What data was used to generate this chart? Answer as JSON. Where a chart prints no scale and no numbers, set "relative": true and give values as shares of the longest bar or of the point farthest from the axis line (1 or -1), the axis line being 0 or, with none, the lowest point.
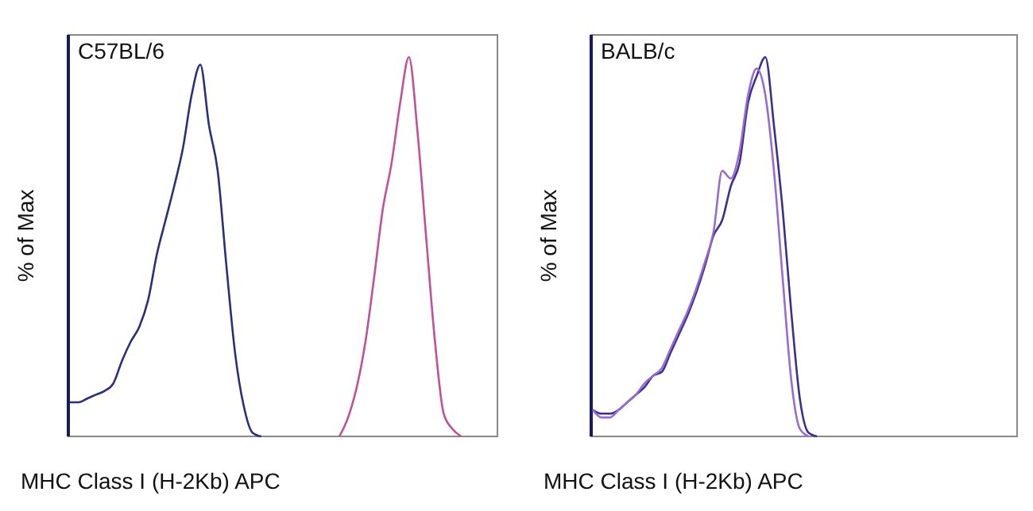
{
  "chart_data": [
    {
      "type": "line",
      "title": "C57BL/6",
      "xlabel": "MHC Class I (H-2Kb) APC",
      "ylabel": "% of Max",
      "relative": true,
      "categories": [
        null,
        null,
        null,
        null,
        null,
        null,
        null,
        null,
        null,
        null,
        null,
        null,
        null,
        null,
        null,
        null,
        null,
        null,
        null,
        null,
        null,
        null,
        null,
        null,
        null,
        null,
        null,
        null,
        null,
        null,
        null,
        null,
        null,
        null,
        null,
        null,
        null,
        null,
        null,
        null,
        null,
        null,
        null,
        null,
        null,
        null,
        null,
        null,
        null,
        null
      ],
      "series": [
        {
          "color": "#2b2f7a",
          "values": [
            0.09,
            0.09,
            0.1,
            0.11,
            0.12,
            0.14,
            0.2,
            0.25,
            0.29,
            0.36,
            0.48,
            0.57,
            0.66,
            0.76,
            0.9,
            0.98,
            0.82,
            0.7,
            0.45,
            0.22,
            0.08,
            0.01,
            0,
            null,
            null,
            null,
            null,
            null,
            null,
            null,
            null,
            null,
            null,
            null,
            null,
            null,
            null,
            null,
            null,
            null,
            null,
            null,
            null,
            null,
            null,
            null,
            null,
            null,
            null,
            null
          ]
        },
        {
          "color": "#c0509a",
          "values": [
            null,
            null,
            null,
            null,
            null,
            null,
            null,
            null,
            null,
            null,
            null,
            null,
            null,
            null,
            null,
            null,
            null,
            null,
            null,
            null,
            null,
            null,
            null,
            null,
            null,
            null,
            null,
            null,
            null,
            null,
            null,
            0,
            0.05,
            0.13,
            0.25,
            0.42,
            0.6,
            0.72,
            0.88,
            1,
            0.8,
            0.52,
            0.25,
            0.06,
            0.02,
            0,
            null,
            null,
            null,
            null
          ]
        }
      ]
    },
    {
      "type": "line",
      "title": "BALB/c",
      "xlabel": "MHC Class I (H-2Kb) APC",
      "ylabel": "% of Max",
      "relative": true,
      "categories": [
        null,
        null,
        null,
        null,
        null,
        null,
        null,
        null,
        null,
        null,
        null,
        null,
        null,
        null,
        null,
        null,
        null,
        null,
        null,
        null,
        null,
        null,
        null,
        null,
        null,
        null,
        null,
        null,
        null,
        null,
        null,
        null,
        null,
        null,
        null,
        null,
        null,
        null,
        null,
        null,
        null,
        null,
        null,
        null,
        null,
        null,
        null,
        null,
        null,
        null
      ],
      "series": [
        {
          "color": "#3a2f8f",
          "values": [
            0.07,
            0.06,
            0.06,
            0.07,
            0.09,
            0.11,
            0.13,
            0.16,
            0.17,
            0.22,
            0.27,
            0.32,
            0.38,
            0.45,
            0.53,
            0.57,
            0.66,
            0.72,
            0.88,
            0.95,
            1,
            0.82,
            0.6,
            0.33,
            0.1,
            0.01,
            0,
            null,
            null,
            null,
            null,
            null,
            null,
            null,
            null,
            null,
            null,
            null,
            null,
            null,
            null,
            null,
            null,
            null,
            null,
            null,
            null,
            null,
            null,
            null
          ]
        },
        {
          "color": "#9a6ad0",
          "values": [
            0.07,
            0.05,
            0.05,
            0.07,
            0.09,
            0.11,
            0.14,
            0.16,
            0.18,
            0.23,
            0.28,
            0.33,
            0.39,
            0.46,
            0.54,
            0.7,
            0.68,
            0.75,
            0.9,
            0.97,
            0.9,
            0.7,
            0.42,
            0.15,
            0.02,
            0,
            null,
            null,
            null,
            null,
            null,
            null,
            null,
            null,
            null,
            null,
            null,
            null,
            null,
            null,
            null,
            null,
            null,
            null,
            null,
            null,
            null,
            null,
            null,
            null
          ]
        }
      ]
    }
  ]
}
